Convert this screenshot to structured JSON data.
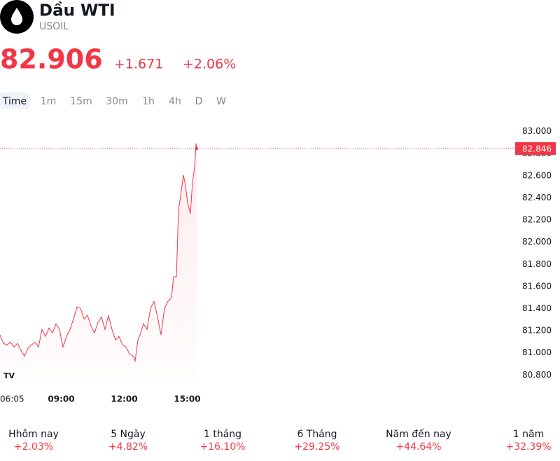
{
  "header": {
    "title": "Dầu WTI",
    "symbol": "USOIL"
  },
  "quote": {
    "price": "82.906",
    "change": "+1.671",
    "change_percent": "+2.06%"
  },
  "intervals": {
    "items": [
      "Time",
      "1m",
      "15m",
      "30m",
      "1h",
      "4h",
      "D",
      "W"
    ],
    "selected": "Time"
  },
  "chart_data": {
    "type": "line",
    "x": [
      6.083,
      6.25,
      6.417,
      6.583,
      6.75,
      6.917,
      7.083,
      7.25,
      7.417,
      7.583,
      7.75,
      7.917,
      8.083,
      8.25,
      8.417,
      8.583,
      8.75,
      8.917,
      9.083,
      9.25,
      9.417,
      9.583,
      9.75,
      9.917,
      10.083,
      10.25,
      10.417,
      10.583,
      10.75,
      10.917,
      11.083,
      11.25,
      11.417,
      11.583,
      11.75,
      11.917,
      12.083,
      12.25,
      12.417,
      12.517,
      12.65,
      12.75,
      12.917,
      13.083,
      13.25,
      13.417,
      13.583,
      13.75,
      13.917,
      14.083,
      14.25,
      14.35,
      14.483,
      14.583,
      14.683,
      14.817,
      14.917,
      15.017,
      15.15,
      15.25,
      15.35,
      15.417,
      15.45
    ],
    "series": [
      {
        "color": "#f23645",
        "values": [
          81.162,
          81.086,
          81.073,
          81.098,
          81.054,
          81.086,
          81.022,
          80.971,
          81.041,
          81.073,
          81.098,
          81.054,
          81.212,
          81.149,
          81.225,
          81.181,
          81.263,
          81.212,
          81.054,
          81.149,
          81.212,
          81.307,
          81.415,
          81.403,
          81.307,
          81.339,
          81.244,
          81.181,
          81.276,
          81.326,
          81.212,
          81.339,
          81.212,
          81.117,
          81.149,
          81.073,
          81.054,
          80.99,
          80.971,
          80.927,
          81.117,
          81.162,
          81.263,
          81.212,
          81.403,
          81.466,
          81.326,
          81.162,
          81.403,
          81.466,
          81.498,
          81.688,
          81.688,
          82.29,
          82.417,
          82.607,
          82.512,
          82.353,
          82.258,
          82.544,
          82.67,
          82.892,
          82.846
        ]
      }
    ],
    "last_value": 82.846,
    "xlim": [
      6.083,
      30.583
    ],
    "xticks": [
      {
        "value": 6.083,
        "label": "06:05"
      },
      {
        "value": 9,
        "label": "09:00"
      },
      {
        "value": 12,
        "label": "12:00"
      },
      {
        "value": 15,
        "label": "15:00"
      }
    ],
    "ylim": [
      80.72,
      83.08
    ],
    "yticks": [
      {
        "value": 80.8,
        "label": "80.800"
      },
      {
        "value": 81,
        "label": "81.000"
      },
      {
        "value": 81.2,
        "label": "81.200"
      },
      {
        "value": 81.4,
        "label": "81.400"
      },
      {
        "value": 81.6,
        "label": "81.600"
      },
      {
        "value": 81.8,
        "label": "81.800"
      },
      {
        "value": 82,
        "label": "82.000"
      },
      {
        "value": 82.2,
        "label": "82.200"
      },
      {
        "value": 82.4,
        "label": "82.400"
      },
      {
        "value": 82.6,
        "label": "82.600"
      },
      {
        "value": 82.8,
        "label": "82.800"
      },
      {
        "value": 83,
        "label": "83.000"
      }
    ],
    "grid": false
  },
  "performance": [
    {
      "label": "Hhôm nay",
      "value": "+2.03%"
    },
    {
      "label": "5 Ngày",
      "value": "+4.82%"
    },
    {
      "label": "1 tháng",
      "value": "+16.10%"
    },
    {
      "label": "6 Tháng",
      "value": "+29.25%"
    },
    {
      "label": "Năm đến nay",
      "value": "+44.64%"
    },
    {
      "label": "1 năm",
      "value": "+32.39%"
    }
  ]
}
